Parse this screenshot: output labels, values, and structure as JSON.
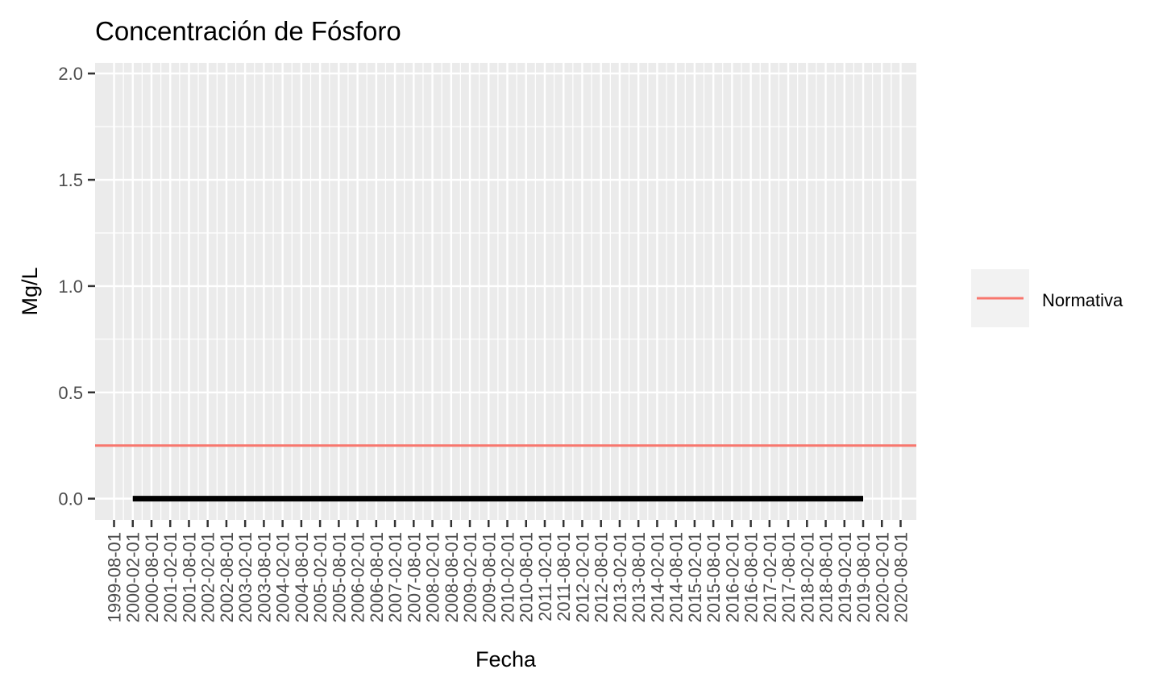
{
  "chart_data": {
    "type": "line",
    "title": "Concentración de Fósforo",
    "xlabel": "Fecha",
    "ylabel": "Mg/L",
    "ylim": [
      -0.1,
      2.05
    ],
    "y_ticks": [
      0.0,
      0.5,
      1.0,
      1.5,
      2.0
    ],
    "y_tick_labels": [
      "0.0",
      "0.5",
      "1.0",
      "1.5",
      "2.0"
    ],
    "x_tick_labels": [
      "1999-08-01",
      "2000-02-01",
      "2000-08-01",
      "2001-02-01",
      "2001-08-01",
      "2002-02-01",
      "2002-08-01",
      "2003-02-01",
      "2003-08-01",
      "2004-02-01",
      "2004-08-01",
      "2005-02-01",
      "2005-08-01",
      "2006-02-01",
      "2006-08-01",
      "2007-02-01",
      "2007-08-01",
      "2008-02-01",
      "2008-08-01",
      "2009-02-01",
      "2009-08-01",
      "2010-02-01",
      "2010-08-01",
      "2011-02-01",
      "2011-08-01",
      "2012-02-01",
      "2012-08-01",
      "2013-02-01",
      "2013-08-01",
      "2014-02-01",
      "2014-08-01",
      "2015-02-01",
      "2015-08-01",
      "2016-02-01",
      "2016-08-01",
      "2017-02-01",
      "2017-08-01",
      "2018-02-01",
      "2018-08-01",
      "2019-02-01",
      "2019-08-01",
      "2020-02-01",
      "2020-08-01"
    ],
    "series": [
      {
        "color": "#000000",
        "x": [
          "2000-02-01",
          "2019-08-01"
        ],
        "values": [
          0.0,
          0.0
        ]
      },
      {
        "name": "Normativa",
        "color": "#F8766D",
        "values": [
          0.25
        ]
      }
    ],
    "grid": true,
    "legend_position": "right",
    "panel_background": "#EBEBEB"
  }
}
